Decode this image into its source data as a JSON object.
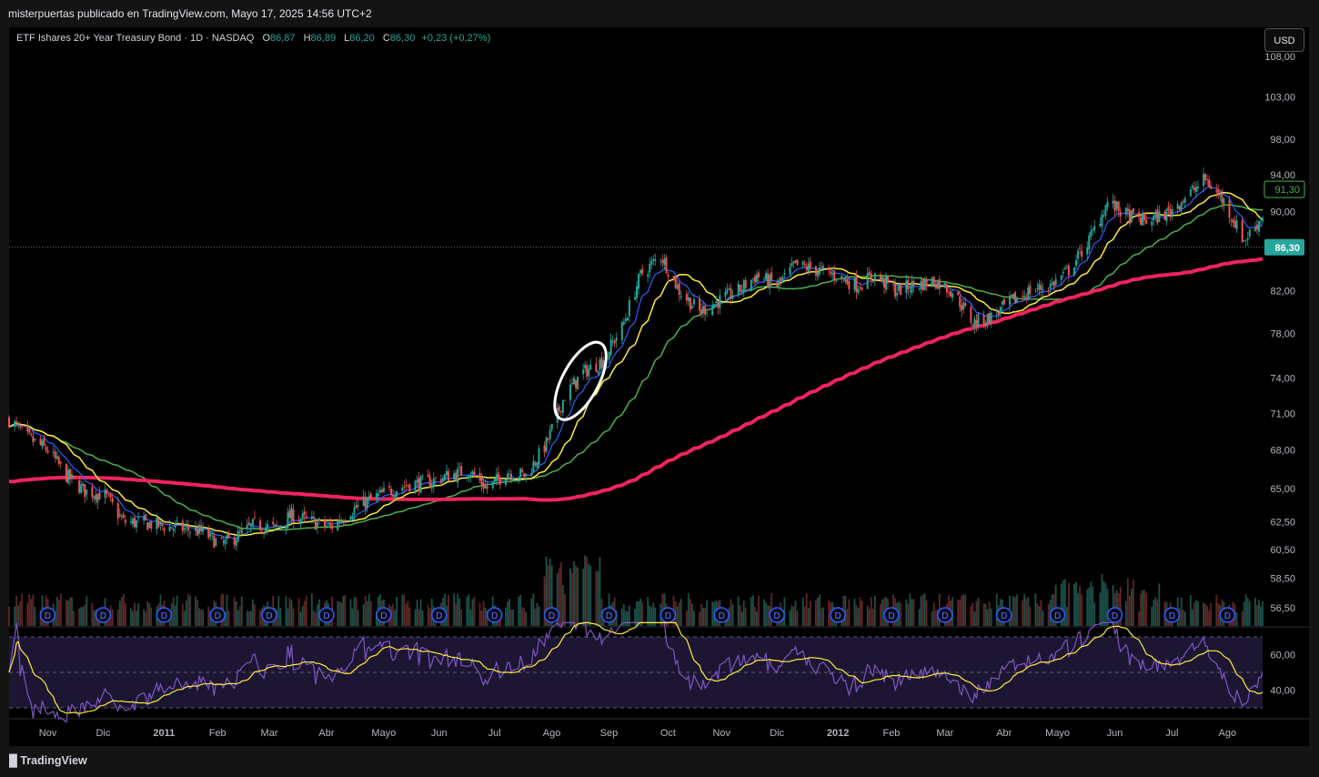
{
  "header": {
    "attribution": "misterpuertas publicado en TradingView.com, Mayo 17, 2025 14:56 UTC+2"
  },
  "legend": {
    "symbol": "ETF Ishares 20+ Year Treasury Bond · 1D · NASDAQ",
    "o_label": "O",
    "o_value": "86,87",
    "h_label": "H",
    "h_value": "86,89",
    "l_label": "L",
    "l_value": "86,20",
    "c_label": "C",
    "c_value": "86,30",
    "change": "+0,23 (+0,27%)"
  },
  "currency_button": "USD",
  "footer": {
    "logo_text": "TradingView"
  },
  "colors": {
    "up": "#26a69a",
    "down": "#ef5350",
    "sma_fast": "#ffeb3b",
    "sma_slow": "#4caf50",
    "sma_200": "#f0245e",
    "ema_short": "#2962ff",
    "rsi": "#7e57c2",
    "rsi_ma": "#ffeb3b",
    "dividend": "#2962ff",
    "annotation": "#ffffff"
  },
  "icons": {
    "dividend_marker": "D"
  },
  "chart_data": {
    "type": "candlestick",
    "title": "ETF Ishares 20+ Year Treasury Bond · 1D · NASDAQ",
    "y_axis": {
      "ticks": [
        56.5,
        58.5,
        60.5,
        62.5,
        65,
        68,
        71,
        74,
        78,
        82,
        86,
        90,
        94,
        98,
        103,
        108
      ],
      "tick_labels": [
        "56,50",
        "58,50",
        "60,50",
        "62,50",
        "65,00",
        "68,00",
        "71,00",
        "74,00",
        "78,00",
        "82,00",
        "86,00",
        "90,00",
        "94,00",
        "98,00",
        "103,00",
        "108,00"
      ],
      "scale": "log"
    },
    "x_axis": {
      "labels": [
        "Nov",
        "Dic",
        "2011",
        "Feb",
        "Mar",
        "Abr",
        "Mayo",
        "Jun",
        "Jul",
        "Ago",
        "Sep",
        "Oct",
        "Nov",
        "Dic",
        "2012",
        "Feb",
        "Mar",
        "Abr",
        "Mayo",
        "Jun",
        "Jul",
        "Ago"
      ],
      "bold": [
        "2011",
        "2012"
      ]
    },
    "price_labels": {
      "last": "86,30",
      "sma": "91,30"
    },
    "close_series": [
      [
        "2010-10-15",
        70.5
      ],
      [
        "2010-10-25",
        69.0
      ],
      [
        "2010-11-05",
        68.0
      ],
      [
        "2010-11-15",
        66.0
      ],
      [
        "2010-11-25",
        64.8
      ],
      [
        "2010-12-06",
        64.5
      ],
      [
        "2010-12-16",
        62.5
      ],
      [
        "2010-12-27",
        62.4
      ],
      [
        "2011-01-06",
        62.2
      ],
      [
        "2011-01-17",
        62.0
      ],
      [
        "2011-01-27",
        61.8
      ],
      [
        "2011-02-07",
        60.8
      ],
      [
        "2011-02-16",
        61.5
      ],
      [
        "2011-02-25",
        62.3
      ],
      [
        "2011-03-08",
        62.0
      ],
      [
        "2011-03-17",
        63.0
      ],
      [
        "2011-03-28",
        62.5
      ],
      [
        "2011-04-07",
        62.1
      ],
      [
        "2011-04-18",
        63.3
      ],
      [
        "2011-04-28",
        64.1
      ],
      [
        "2011-05-09",
        64.8
      ],
      [
        "2011-05-19",
        65.3
      ],
      [
        "2011-05-31",
        65.5
      ],
      [
        "2011-06-10",
        66.0
      ],
      [
        "2011-06-21",
        66.4
      ],
      [
        "2011-07-01",
        65.0
      ],
      [
        "2011-07-12",
        66.3
      ],
      [
        "2011-07-22",
        66.0
      ],
      [
        "2011-08-02",
        68.5
      ],
      [
        "2011-08-12",
        72.5
      ],
      [
        "2011-08-22",
        74.5
      ],
      [
        "2011-09-01",
        75.5
      ],
      [
        "2011-09-12",
        78.5
      ],
      [
        "2011-09-22",
        83.5
      ],
      [
        "2011-10-03",
        85.5
      ],
      [
        "2011-10-13",
        82.0
      ],
      [
        "2011-10-24",
        80.0
      ],
      [
        "2011-11-03",
        81.0
      ],
      [
        "2011-11-14",
        82.0
      ],
      [
        "2011-11-24",
        83.5
      ],
      [
        "2011-12-05",
        82.5
      ],
      [
        "2011-12-15",
        84.5
      ],
      [
        "2011-12-27",
        84.0
      ],
      [
        "2012-01-06",
        83.5
      ],
      [
        "2012-01-17",
        82.5
      ],
      [
        "2012-01-27",
        83.5
      ],
      [
        "2012-02-07",
        82.0
      ],
      [
        "2012-02-17",
        82.5
      ],
      [
        "2012-02-28",
        83.0
      ],
      [
        "2012-03-09",
        82.0
      ],
      [
        "2012-03-20",
        79.0
      ],
      [
        "2012-03-30",
        79.5
      ],
      [
        "2012-04-10",
        81.0
      ],
      [
        "2012-04-20",
        82.0
      ],
      [
        "2012-05-01",
        82.5
      ],
      [
        "2012-05-11",
        84.0
      ],
      [
        "2012-05-22",
        87.0
      ],
      [
        "2012-06-01",
        91.0
      ],
      [
        "2012-06-12",
        89.5
      ],
      [
        "2012-06-22",
        89.0
      ],
      [
        "2012-07-03",
        89.8
      ],
      [
        "2012-07-13",
        91.5
      ],
      [
        "2012-07-24",
        93.5
      ],
      [
        "2012-08-03",
        91.0
      ],
      [
        "2012-08-14",
        87.0
      ],
      [
        "2012-08-24",
        89.5
      ]
    ],
    "indicators": [
      {
        "name": "SMA fast",
        "color": "#ffeb3b"
      },
      {
        "name": "SMA slow",
        "color": "#4caf50"
      },
      {
        "name": "SMA 200",
        "color": "#f0245e"
      },
      {
        "name": "EMA short",
        "color": "#2962ff"
      }
    ],
    "rsi_panel": {
      "ticks": [
        40,
        60
      ],
      "tick_labels": [
        "40,00",
        "60,00"
      ],
      "band_upper": 70,
      "band_mid": 50,
      "band_lower": 30,
      "ylim": [
        24,
        76
      ]
    },
    "dividends": {
      "marker": "D",
      "dates": [
        "2010-11-01",
        "2010-12-01",
        "2011-01-03",
        "2011-02-01",
        "2011-03-01",
        "2011-04-01",
        "2011-05-02",
        "2011-06-01",
        "2011-07-01",
        "2011-08-01",
        "2011-09-01",
        "2011-10-03",
        "2011-11-01",
        "2011-12-01",
        "2012-01-03",
        "2012-02-01",
        "2012-03-01",
        "2012-04-02",
        "2012-05-01",
        "2012-06-01",
        "2012-07-02",
        "2012-08-01"
      ]
    },
    "annotation": {
      "type": "ellipse",
      "x_range": [
        "2011-08-08",
        "2011-08-31"
      ],
      "y_range": [
        70.5,
        77.5
      ]
    }
  }
}
